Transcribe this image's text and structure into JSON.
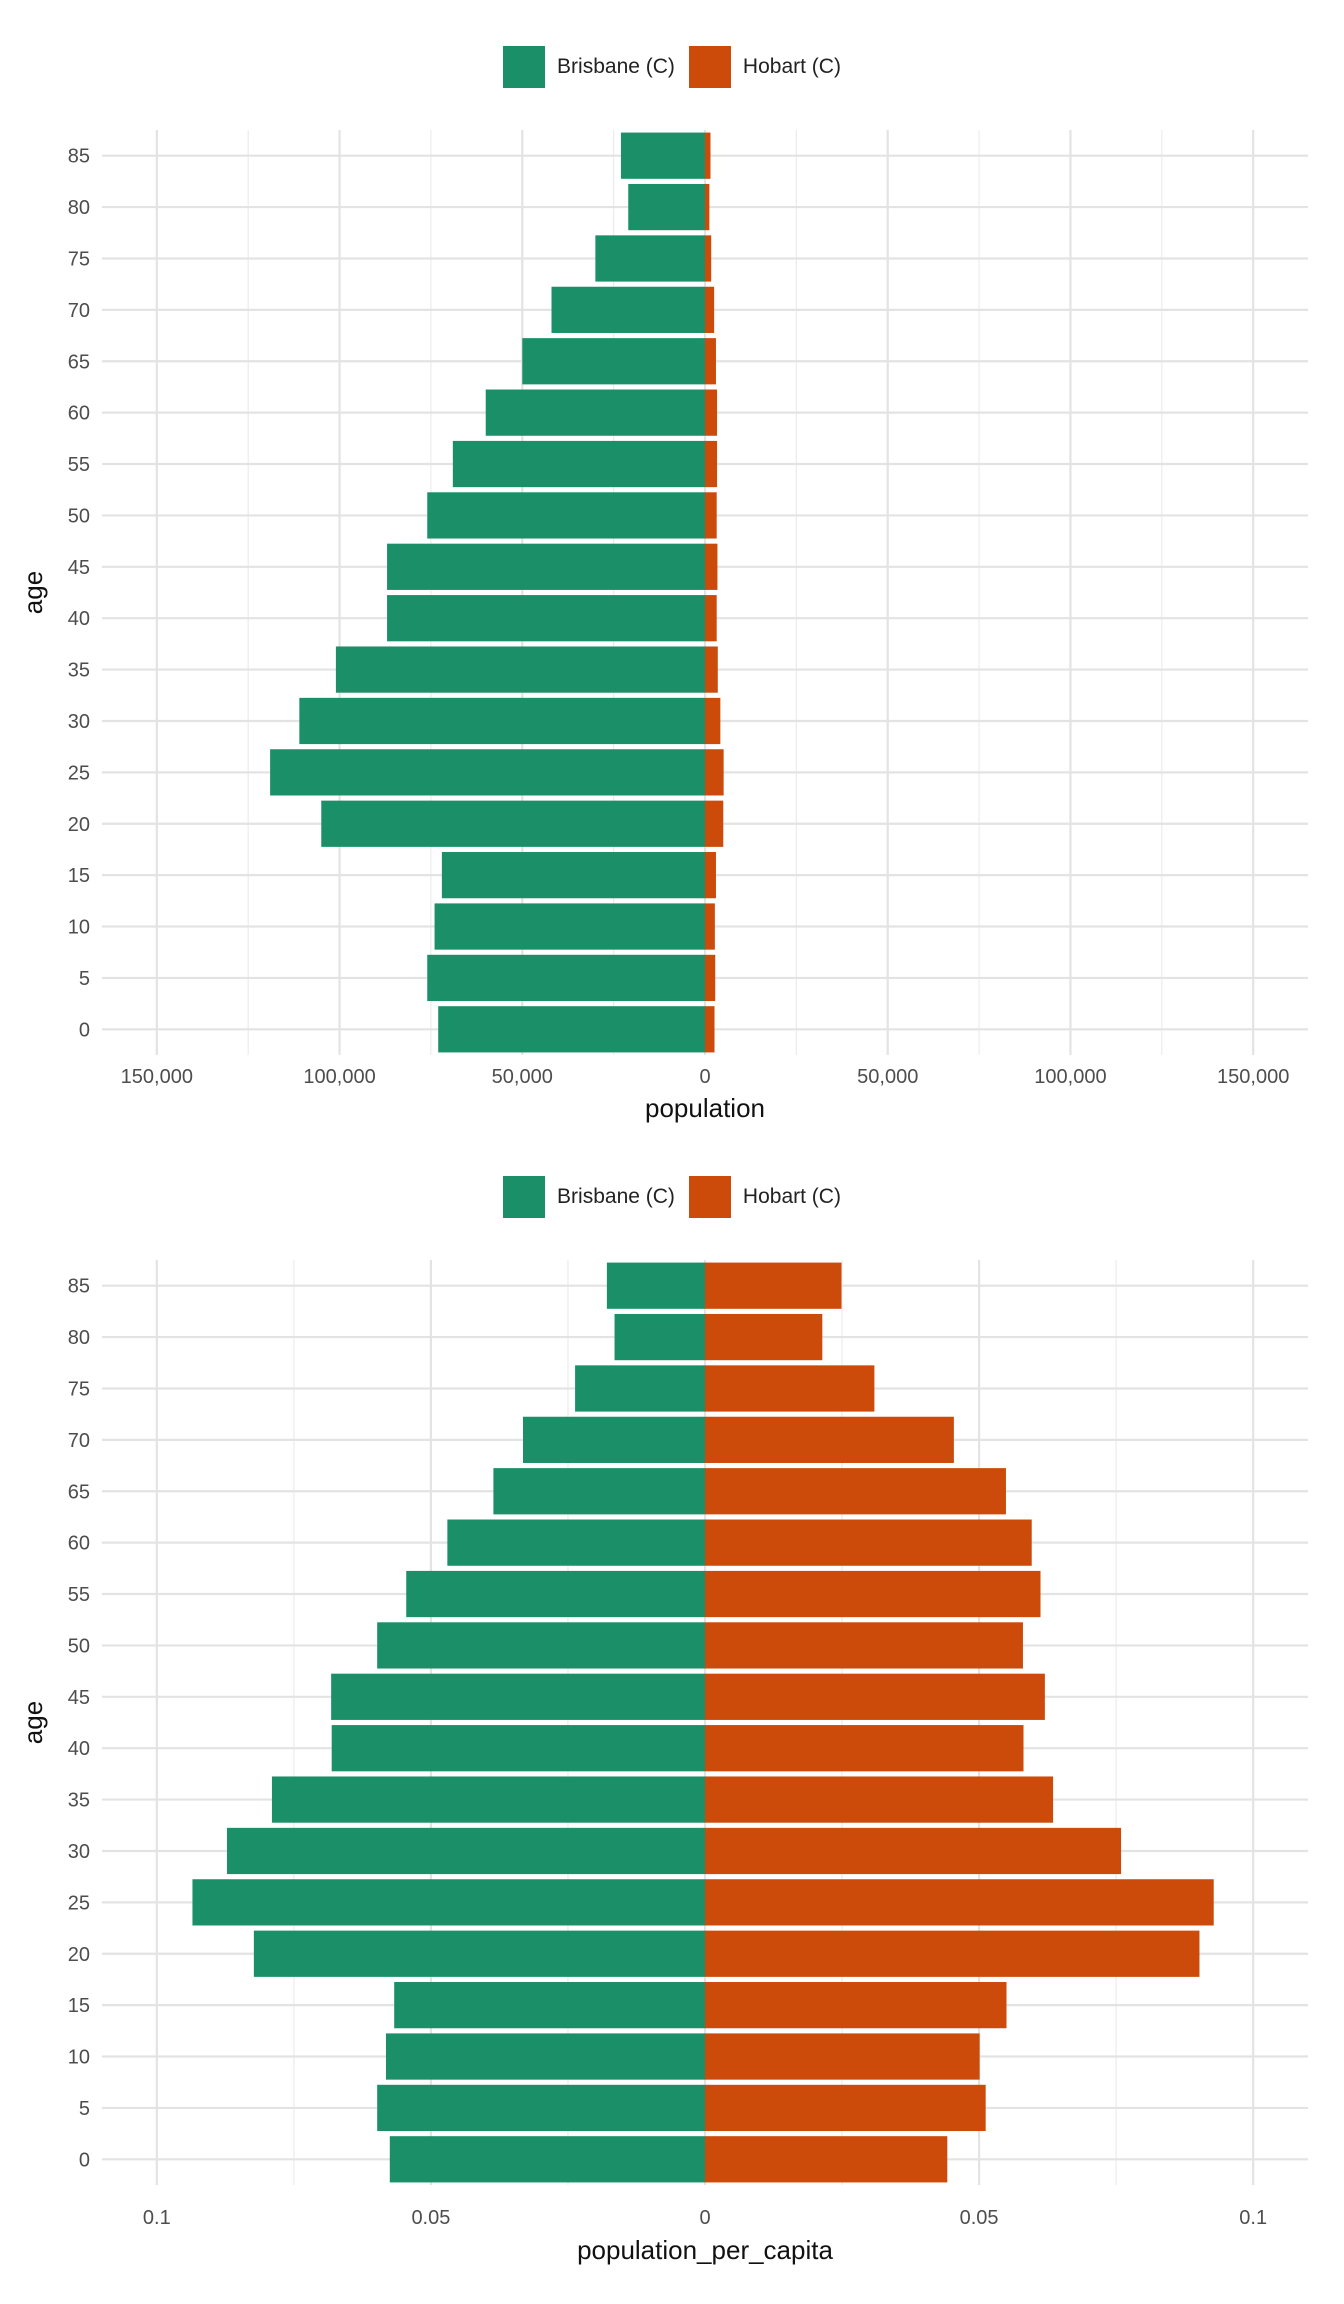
{
  "chart_data": [
    {
      "type": "bar",
      "orientation": "horizontal",
      "layout": "population-pyramid",
      "xlabel": "population",
      "ylabel": "age",
      "xlim": [
        -165000,
        165000
      ],
      "x_ticks": [
        -150000,
        -100000,
        -50000,
        0,
        50000,
        100000,
        150000
      ],
      "x_tick_labels": [
        "150,000",
        "100,000",
        "50,000",
        "0",
        "50,000",
        "100,000",
        "150,000"
      ],
      "categories": [
        0,
        5,
        10,
        15,
        20,
        25,
        30,
        35,
        40,
        45,
        50,
        55,
        60,
        65,
        70,
        75,
        80,
        85
      ],
      "series": [
        {
          "name": "Brisbane (C)",
          "side": "left",
          "color": "#1b9068",
          "values": [
            73000,
            76000,
            74000,
            72000,
            105000,
            119000,
            111000,
            101000,
            87000,
            87000,
            76000,
            69000,
            60000,
            50000,
            42000,
            30000,
            21000,
            23000
          ]
        },
        {
          "name": "Hobart (C)",
          "side": "right",
          "color": "#cc4b0a",
          "values": [
            2600,
            2800,
            2700,
            3000,
            5000,
            5100,
            4200,
            3500,
            3200,
            3400,
            3200,
            3300,
            3300,
            3000,
            2500,
            1700,
            1200,
            1500
          ]
        }
      ],
      "legend_position": "top",
      "grid": true
    },
    {
      "type": "bar",
      "orientation": "horizontal",
      "layout": "population-pyramid",
      "xlabel": "population_per_capita",
      "ylabel": "age",
      "xlim": [
        -0.11,
        0.11
      ],
      "x_ticks": [
        -0.1,
        -0.05,
        0,
        0.05,
        0.1
      ],
      "x_tick_labels": [
        "0.1",
        "0.05",
        "0",
        "0.05",
        "0.1"
      ],
      "categories": [
        0,
        5,
        10,
        15,
        20,
        25,
        30,
        35,
        40,
        45,
        50,
        55,
        60,
        65,
        70,
        75,
        80,
        85
      ],
      "series": [
        {
          "name": "Brisbane (C)",
          "side": "left",
          "color": "#1b9068",
          "values": [
            0.0575,
            0.0598,
            0.0582,
            0.0567,
            0.0823,
            0.0935,
            0.0872,
            0.079,
            0.0681,
            0.0682,
            0.0598,
            0.0545,
            0.047,
            0.0386,
            0.0332,
            0.0237,
            0.0165,
            0.0179
          ]
        },
        {
          "name": "Hobart (C)",
          "side": "right",
          "color": "#cc4b0a",
          "values": [
            0.0442,
            0.0512,
            0.0501,
            0.055,
            0.0902,
            0.0928,
            0.0759,
            0.0635,
            0.0581,
            0.062,
            0.058,
            0.0612,
            0.0596,
            0.0549,
            0.0454,
            0.0309,
            0.0214,
            0.0249
          ]
        }
      ],
      "legend_position": "top",
      "grid": true
    }
  ]
}
